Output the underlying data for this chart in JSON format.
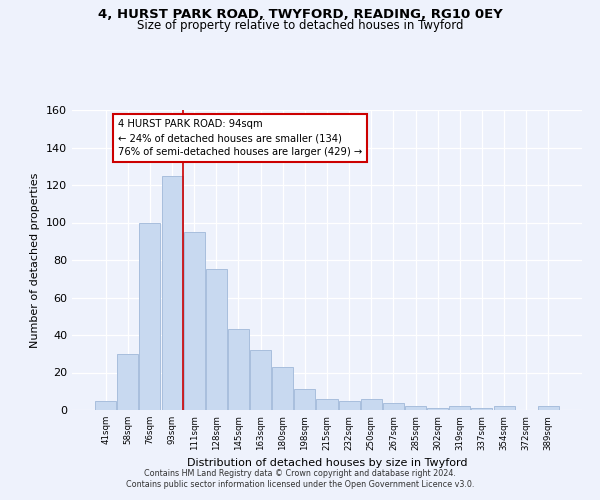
{
  "title": "4, HURST PARK ROAD, TWYFORD, READING, RG10 0EY",
  "subtitle": "Size of property relative to detached houses in Twyford",
  "xlabel": "Distribution of detached houses by size in Twyford",
  "ylabel": "Number of detached properties",
  "bar_values": [
    5,
    30,
    100,
    125,
    95,
    75,
    43,
    32,
    23,
    11,
    6,
    5,
    6,
    4,
    2,
    1,
    2,
    1,
    2,
    0,
    2
  ],
  "bar_labels": [
    "41sqm",
    "58sqm",
    "76sqm",
    "93sqm",
    "111sqm",
    "128sqm",
    "145sqm",
    "163sqm",
    "180sqm",
    "198sqm",
    "215sqm",
    "232sqm",
    "250sqm",
    "267sqm",
    "285sqm",
    "302sqm",
    "319sqm",
    "337sqm",
    "354sqm",
    "372sqm",
    "389sqm"
  ],
  "bar_color": "#c8d9f0",
  "bar_edge_color": "#a8bedd",
  "vline_index": 3,
  "vline_color": "#cc0000",
  "annotation_title": "4 HURST PARK ROAD: 94sqm",
  "annotation_line1": "← 24% of detached houses are smaller (134)",
  "annotation_line2": "76% of semi-detached houses are larger (429) →",
  "annotation_box_color": "#ffffff",
  "annotation_box_edge": "#cc0000",
  "ylim": [
    0,
    160
  ],
  "yticks": [
    0,
    20,
    40,
    60,
    80,
    100,
    120,
    140,
    160
  ],
  "footer1": "Contains HM Land Registry data © Crown copyright and database right 2024.",
  "footer2": "Contains public sector information licensed under the Open Government Licence v3.0.",
  "bg_color": "#eef2fc",
  "plot_bg_color": "#eef2fc"
}
